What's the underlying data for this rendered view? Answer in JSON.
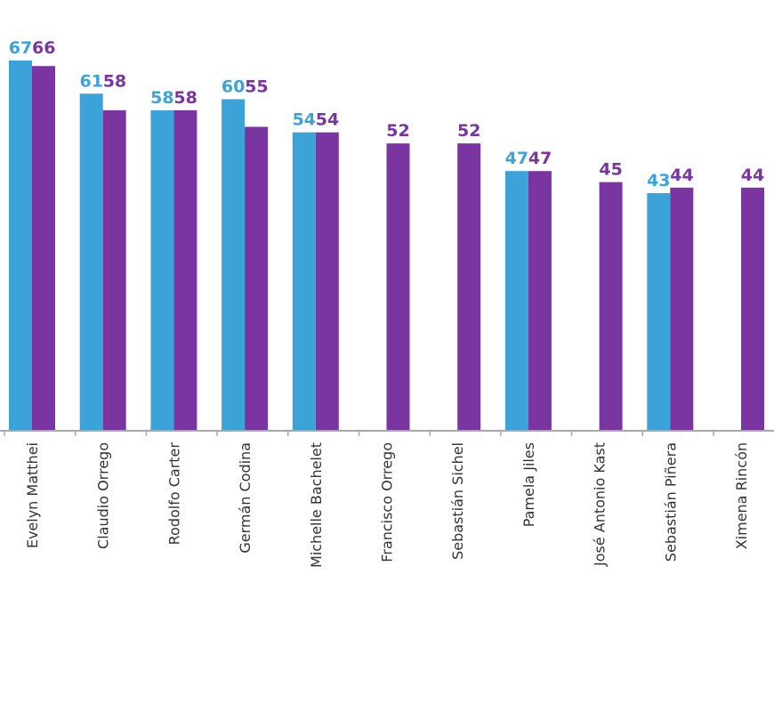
{
  "chart_data": {
    "type": "bar",
    "categories": [
      "Evelyn Matthei",
      "Claudio Orrego",
      "Rodolfo Carter",
      "Germán Codina",
      "Michelle Bachelet",
      "Francisco Orrego",
      "Sebastián Sichel",
      "Pamela Jiles",
      "José Antonio Kast",
      "Sebastián Piñera",
      "Ximena Rincón"
    ],
    "series": [
      {
        "values": [
          67,
          61,
          58,
          60,
          54,
          null,
          null,
          47,
          null,
          43,
          null
        ],
        "color": "#3ba3d8"
      },
      {
        "values": [
          66,
          58,
          58,
          55,
          54,
          52,
          52,
          47,
          45,
          44,
          44
        ],
        "color": "#7b35a0"
      }
    ],
    "ylim": [
      0,
      67
    ],
    "grid": false,
    "legend": "none",
    "data_labels": true
  }
}
